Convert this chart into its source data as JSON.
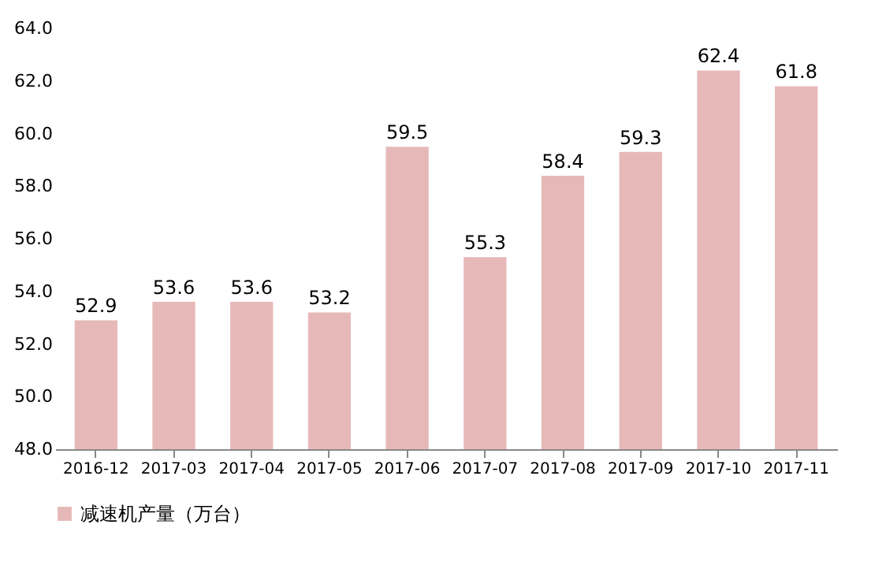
{
  "chart_data": {
    "type": "bar",
    "categories": [
      "2016-12",
      "2017-03",
      "2017-04",
      "2017-05",
      "2017-06",
      "2017-07",
      "2017-08",
      "2017-09",
      "2017-10",
      "2017-11"
    ],
    "series": [
      {
        "name": "减速机产量（万台）",
        "color": "#e6b9b8",
        "values": [
          52.9,
          53.6,
          53.6,
          53.2,
          59.5,
          55.3,
          58.4,
          59.3,
          62.4,
          61.8
        ]
      }
    ],
    "ylim": [
      48,
      64
    ],
    "yticks": [
      {
        "value": 48,
        "label": "48.0"
      },
      {
        "value": 50,
        "label": "50.0"
      },
      {
        "value": 52,
        "label": "52.0"
      },
      {
        "value": 54,
        "label": "54.0"
      },
      {
        "value": 56,
        "label": "56.0"
      },
      {
        "value": 58,
        "label": "58.0"
      },
      {
        "value": 60,
        "label": "60.0"
      },
      {
        "value": 62,
        "label": "62.0"
      },
      {
        "value": 64,
        "label": "64.0"
      }
    ],
    "data_labels": true,
    "legend": "bottom",
    "grid": false
  }
}
